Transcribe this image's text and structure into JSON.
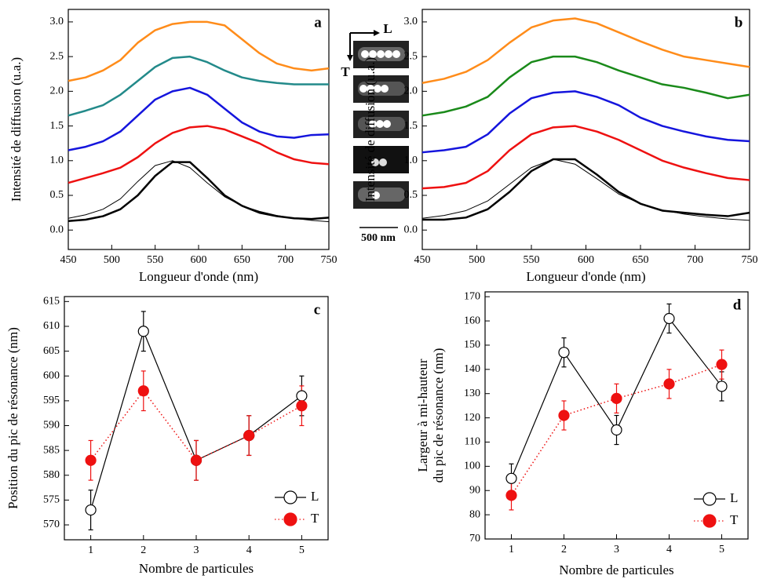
{
  "chart_data": [
    {
      "type": "line",
      "label": "a",
      "xlabel": "Longueur d'onde (nm)",
      "ylabel": "Intensité de diffusion (u.a.)",
      "x": [
        450,
        470,
        490,
        510,
        530,
        550,
        570,
        590,
        610,
        630,
        650,
        670,
        690,
        710,
        730,
        750
      ],
      "xlim": [
        450,
        750
      ],
      "xticks": [
        450,
        500,
        550,
        600,
        650,
        700,
        750
      ],
      "ylim": [
        -0.28,
        3.18
      ],
      "yticks": [
        {
          "value": 0,
          "label": "0.0"
        },
        0.5,
        {
          "value": 1,
          "label": "1.0"
        },
        1.5,
        {
          "value": 2,
          "label": "2.0"
        },
        2.5,
        {
          "value": 3,
          "label": "3.0"
        }
      ],
      "series": [
        {
          "color": "#000000",
          "values": [
            0.13,
            0.15,
            0.2,
            0.3,
            0.5,
            0.78,
            0.98,
            0.98,
            0.75,
            0.5,
            0.35,
            0.25,
            0.2,
            0.17,
            0.16,
            0.18
          ]
        },
        {
          "color": "#000000",
          "style": "fit",
          "values": [
            0.17,
            0.22,
            0.3,
            0.45,
            0.7,
            0.93,
            1.0,
            0.9,
            0.68,
            0.48,
            0.35,
            0.27,
            0.21,
            0.17,
            0.14,
            0.12
          ]
        },
        {
          "color": "#ee1111",
          "values": [
            0.68,
            0.75,
            0.82,
            0.9,
            1.05,
            1.25,
            1.4,
            1.48,
            1.5,
            1.45,
            1.35,
            1.25,
            1.12,
            1.02,
            0.97,
            0.95
          ]
        },
        {
          "color": "#1515dd",
          "values": [
            1.15,
            1.2,
            1.28,
            1.42,
            1.65,
            1.88,
            2.0,
            2.05,
            1.95,
            1.75,
            1.55,
            1.42,
            1.35,
            1.33,
            1.37,
            1.38
          ]
        },
        {
          "color": "#238a8a",
          "values": [
            1.65,
            1.72,
            1.8,
            1.95,
            2.15,
            2.35,
            2.48,
            2.5,
            2.42,
            2.3,
            2.2,
            2.15,
            2.12,
            2.1,
            2.1,
            2.1
          ]
        },
        {
          "color": "#ff8c1a",
          "values": [
            2.15,
            2.2,
            2.3,
            2.45,
            2.7,
            2.88,
            2.97,
            3.0,
            3.0,
            2.95,
            2.75,
            2.55,
            2.4,
            2.33,
            2.3,
            2.33
          ]
        }
      ]
    },
    {
      "type": "line",
      "label": "b",
      "xlabel": "Longueur d'onde (nm)",
      "ylabel": "Intensité de diffusion (u.a.)",
      "x": [
        450,
        470,
        490,
        510,
        530,
        550,
        570,
        590,
        610,
        630,
        650,
        670,
        690,
        710,
        730,
        750
      ],
      "xlim": [
        450,
        750
      ],
      "xticks": [
        450,
        500,
        550,
        600,
        650,
        700,
        750
      ],
      "ylim": [
        -0.28,
        3.18
      ],
      "yticks": [
        {
          "value": 0,
          "label": "0.0"
        },
        0.5,
        {
          "value": 1,
          "label": "1.0"
        },
        1.5,
        {
          "value": 2,
          "label": "2.0"
        },
        2.5,
        {
          "value": 3,
          "label": "3.0"
        }
      ],
      "series": [
        {
          "color": "#000000",
          "values": [
            0.15,
            0.15,
            0.18,
            0.3,
            0.55,
            0.85,
            1.02,
            1.02,
            0.8,
            0.55,
            0.38,
            0.28,
            0.25,
            0.22,
            0.2,
            0.25
          ]
        },
        {
          "color": "#000000",
          "style": "fit",
          "values": [
            0.17,
            0.21,
            0.28,
            0.42,
            0.66,
            0.9,
            1.02,
            0.95,
            0.74,
            0.52,
            0.38,
            0.29,
            0.23,
            0.19,
            0.16,
            0.14
          ]
        },
        {
          "color": "#ee1111",
          "values": [
            0.6,
            0.62,
            0.68,
            0.85,
            1.15,
            1.38,
            1.48,
            1.5,
            1.42,
            1.3,
            1.15,
            1.0,
            0.9,
            0.82,
            0.75,
            0.72
          ]
        },
        {
          "color": "#1515dd",
          "values": [
            1.12,
            1.15,
            1.2,
            1.38,
            1.68,
            1.9,
            1.98,
            2.0,
            1.92,
            1.8,
            1.62,
            1.5,
            1.42,
            1.35,
            1.3,
            1.28
          ]
        },
        {
          "color": "#1a8a1a",
          "values": [
            1.65,
            1.7,
            1.78,
            1.92,
            2.2,
            2.42,
            2.5,
            2.5,
            2.42,
            2.3,
            2.2,
            2.1,
            2.05,
            1.98,
            1.9,
            1.95
          ]
        },
        {
          "color": "#ff8c1a",
          "values": [
            2.12,
            2.18,
            2.28,
            2.45,
            2.7,
            2.92,
            3.02,
            3.05,
            2.98,
            2.85,
            2.72,
            2.6,
            2.5,
            2.45,
            2.4,
            2.35
          ]
        }
      ]
    },
    {
      "type": "errorline",
      "label": "c",
      "xlabel": "Nombre de particules",
      "ylabel": "Position du pic de résonance (nm)",
      "x": [
        1,
        2,
        3,
        4,
        5
      ],
      "xlim": [
        0.5,
        5.5
      ],
      "xticks": [
        1,
        2,
        3,
        4,
        5
      ],
      "ylim": [
        567,
        616
      ],
      "yticks": [
        570,
        575,
        580,
        585,
        590,
        595,
        600,
        605,
        610,
        615
      ],
      "series": [
        {
          "name": "L",
          "color": "#000000",
          "marker": "open",
          "dash": "solid",
          "values": [
            573,
            609,
            583,
            588,
            596
          ],
          "errors": [
            4,
            4,
            4,
            4,
            4
          ]
        },
        {
          "name": "T",
          "color": "#ee1111",
          "marker": "filled",
          "dash": "dotted",
          "values": [
            583,
            597,
            583,
            588,
            594
          ],
          "errors": [
            4,
            4,
            4,
            4,
            4
          ]
        }
      ]
    },
    {
      "type": "errorline",
      "label": "d",
      "xlabel": "Nombre de particules",
      "ylabel": [
        "Largeur à mi-hauteur",
        "du pic de résonance (nm)"
      ],
      "x": [
        1,
        2,
        3,
        4,
        5
      ],
      "xlim": [
        0.5,
        5.5
      ],
      "xticks": [
        1,
        2,
        3,
        4,
        5
      ],
      "ylim": [
        70,
        172
      ],
      "yticks": [
        70,
        80,
        90,
        100,
        110,
        120,
        130,
        140,
        150,
        160,
        170
      ],
      "series": [
        {
          "name": "L",
          "color": "#000000",
          "marker": "open",
          "dash": "solid",
          "values": [
            95,
            147,
            115,
            161,
            133
          ],
          "errors": [
            6,
            6,
            6,
            6,
            6
          ]
        },
        {
          "name": "T",
          "color": "#ee1111",
          "marker": "filled",
          "dash": "dotted",
          "values": [
            88,
            121,
            128,
            134,
            142
          ],
          "errors": [
            6,
            6,
            6,
            6,
            6
          ]
        }
      ]
    }
  ],
  "inset": {
    "axis_labels": [
      "L",
      "T"
    ],
    "scale_bar": "500 nm"
  }
}
